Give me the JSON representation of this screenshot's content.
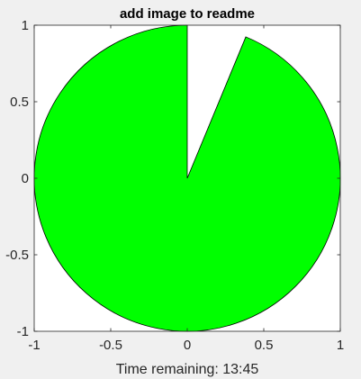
{
  "window": {
    "background": "#f0f0f0"
  },
  "chart_data": {
    "type": "pie",
    "title": "add image to readme",
    "xlabel": "Time remaining: 13:45",
    "ylabel": "",
    "xlim": [
      -1,
      1
    ],
    "ylim": [
      -1,
      1
    ],
    "xticks": [
      "-1",
      "-0.5",
      "0",
      "0.5",
      "1"
    ],
    "yticks": [
      "1",
      "0.5",
      "0",
      "-0.5",
      "-1"
    ],
    "grid": false,
    "legend": "none",
    "slices": [
      {
        "fraction": 0.9375,
        "color": "#00ff00",
        "start_angle_deg": 90,
        "direction": "counterclockwise"
      }
    ],
    "remaining_fraction": 0.0625,
    "edge_color": "#000000",
    "axes_background": "#ffffff"
  }
}
